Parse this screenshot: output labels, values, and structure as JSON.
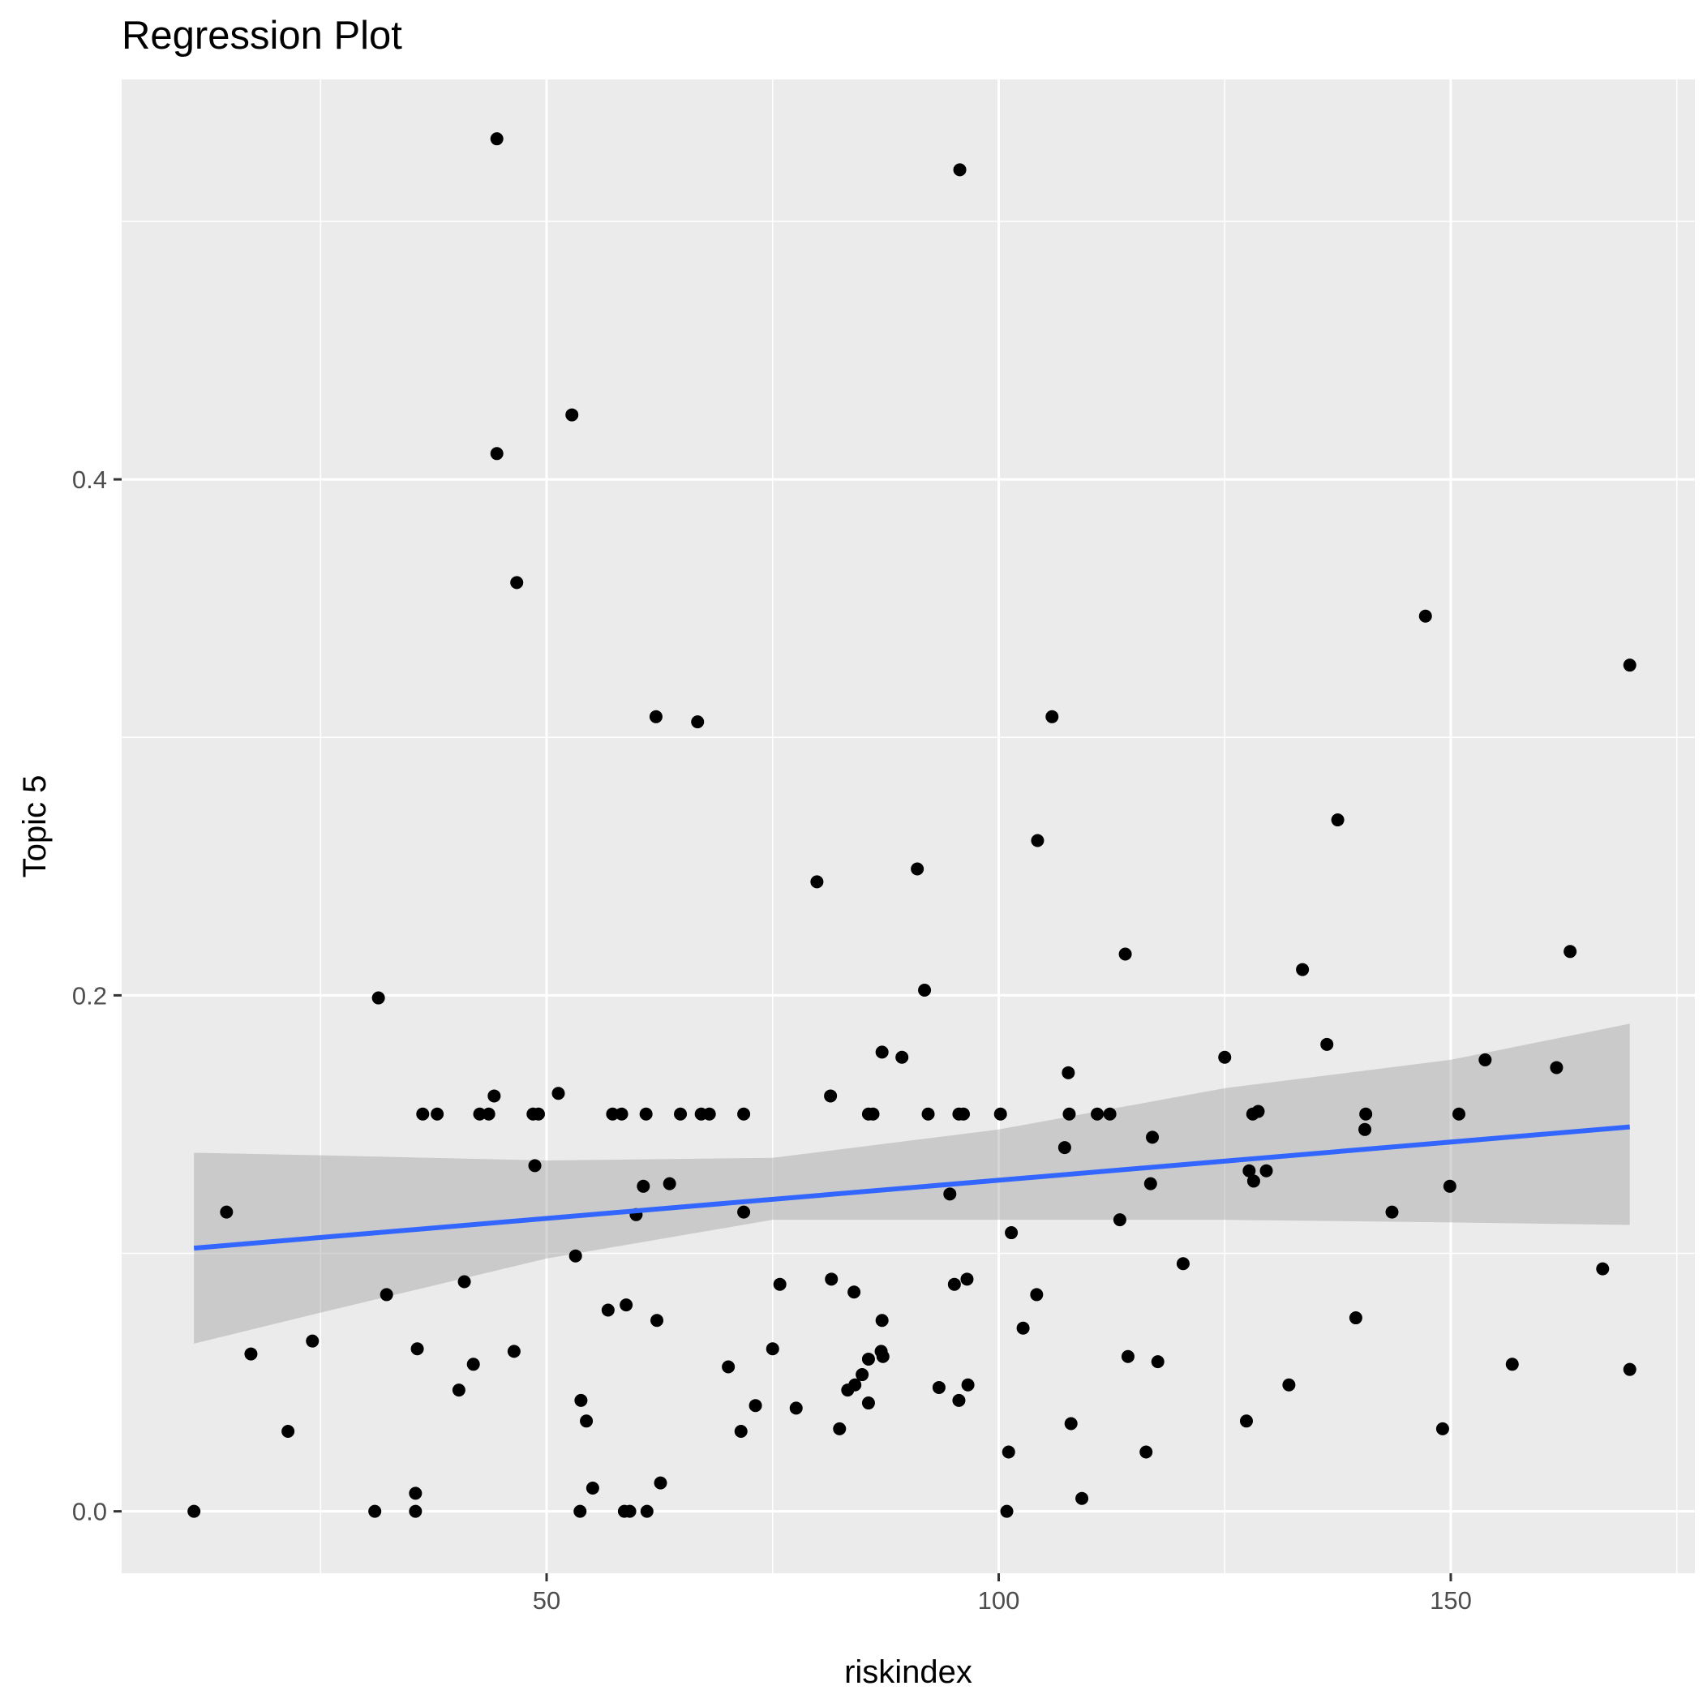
{
  "chart_data": {
    "type": "scatter",
    "title": "Regression Plot",
    "xlabel": "riskindex",
    "ylabel": "Topic 5",
    "xlim": [
      3,
      177
    ],
    "ylim": [
      -0.024,
      0.555
    ],
    "x_ticks": [
      50,
      100,
      150
    ],
    "x_tick_labels": [
      "50",
      "100",
      "150"
    ],
    "y_ticks": [
      0.0,
      0.2,
      0.4
    ],
    "y_tick_labels": [
      "0.0",
      "0.2",
      "0.4"
    ],
    "x_minor_ticks": [
      25,
      75,
      125,
      175
    ],
    "y_minor_ticks": [
      0.1,
      0.3,
      0.5
    ],
    "grid": true,
    "legend": "none",
    "colors": {
      "panel": "#ebebeb",
      "grid": "#ffffff",
      "points": "#000000",
      "regression_line": "#3366ff",
      "confidence_band": "#999999"
    },
    "points": [
      [
        11,
        0.0
      ],
      [
        14.6,
        0.116
      ],
      [
        17.3,
        0.061
      ],
      [
        21.4,
        0.031
      ],
      [
        24.1,
        0.066
      ],
      [
        31,
        0.0
      ],
      [
        31.4,
        0.199
      ],
      [
        32.3,
        0.084
      ],
      [
        35.5,
        0.0
      ],
      [
        35.5,
        0.007
      ],
      [
        35.7,
        0.063
      ],
      [
        36.3,
        0.154
      ],
      [
        37.9,
        0.154
      ],
      [
        40.3,
        0.047
      ],
      [
        40.9,
        0.089
      ],
      [
        41.9,
        0.057
      ],
      [
        42.6,
        0.154
      ],
      [
        43.6,
        0.154
      ],
      [
        44.2,
        0.161
      ],
      [
        44.5,
        0.532
      ],
      [
        44.5,
        0.41
      ],
      [
        46.4,
        0.062
      ],
      [
        46.7,
        0.36
      ],
      [
        48.5,
        0.154
      ],
      [
        48.7,
        0.134
      ],
      [
        49.1,
        0.154
      ],
      [
        51.3,
        0.162
      ],
      [
        52.8,
        0.425
      ],
      [
        53.2,
        0.099
      ],
      [
        53.7,
        0.0
      ],
      [
        53.8,
        0.043
      ],
      [
        54.4,
        0.035
      ],
      [
        55.1,
        0.009
      ],
      [
        56.8,
        0.078
      ],
      [
        57.3,
        0.154
      ],
      [
        58.3,
        0.154
      ],
      [
        58.6,
        0.0
      ],
      [
        58.8,
        0.08
      ],
      [
        59.2,
        0.0
      ],
      [
        59.9,
        0.115
      ],
      [
        60.7,
        0.126
      ],
      [
        61,
        0.154
      ],
      [
        61.1,
        0.0
      ],
      [
        62.1,
        0.308
      ],
      [
        62.2,
        0.074
      ],
      [
        62.6,
        0.011
      ],
      [
        63.6,
        0.127
      ],
      [
        64.8,
        0.154
      ],
      [
        66.7,
        0.306
      ],
      [
        67.1,
        0.154
      ],
      [
        68,
        0.154
      ],
      [
        70.1,
        0.056
      ],
      [
        71.5,
        0.031
      ],
      [
        71.8,
        0.154
      ],
      [
        71.8,
        0.116
      ],
      [
        73.1,
        0.041
      ],
      [
        75,
        0.063
      ],
      [
        75.8,
        0.088
      ],
      [
        77.6,
        0.04
      ],
      [
        79.9,
        0.244
      ],
      [
        81.4,
        0.161
      ],
      [
        81.5,
        0.09
      ],
      [
        82.4,
        0.032
      ],
      [
        83.3,
        0.047
      ],
      [
        84,
        0.085
      ],
      [
        84.1,
        0.049
      ],
      [
        84.9,
        0.053
      ],
      [
        85.6,
        0.059
      ],
      [
        85.6,
        0.154
      ],
      [
        85.6,
        0.042
      ],
      [
        86.1,
        0.154
      ],
      [
        87,
        0.062
      ],
      [
        87.1,
        0.074
      ],
      [
        87.1,
        0.178
      ],
      [
        87.2,
        0.06
      ],
      [
        89.3,
        0.176
      ],
      [
        91,
        0.249
      ],
      [
        91.8,
        0.202
      ],
      [
        92.2,
        0.154
      ],
      [
        93.4,
        0.048
      ],
      [
        94.6,
        0.123
      ],
      [
        95.1,
        0.088
      ],
      [
        95.6,
        0.154
      ],
      [
        95.6,
        0.043
      ],
      [
        95.7,
        0.52
      ],
      [
        96.1,
        0.154
      ],
      [
        96.5,
        0.09
      ],
      [
        96.6,
        0.049
      ],
      [
        100.2,
        0.154
      ],
      [
        100.9,
        0.0
      ],
      [
        101.1,
        0.023
      ],
      [
        101.4,
        0.108
      ],
      [
        102.7,
        0.071
      ],
      [
        104.2,
        0.084
      ],
      [
        104.3,
        0.26
      ],
      [
        105.9,
        0.308
      ],
      [
        107.3,
        0.141
      ],
      [
        107.7,
        0.17
      ],
      [
        107.8,
        0.154
      ],
      [
        108,
        0.034
      ],
      [
        109.2,
        0.005
      ],
      [
        110.9,
        0.154
      ],
      [
        112.3,
        0.154
      ],
      [
        113.4,
        0.113
      ],
      [
        114,
        0.216
      ],
      [
        114.3,
        0.06
      ],
      [
        116.3,
        0.023
      ],
      [
        116.8,
        0.127
      ],
      [
        117,
        0.145
      ],
      [
        117.6,
        0.058
      ],
      [
        120.4,
        0.096
      ],
      [
        125,
        0.176
      ],
      [
        127.4,
        0.035
      ],
      [
        127.7,
        0.132
      ],
      [
        128.1,
        0.154
      ],
      [
        128.2,
        0.128
      ],
      [
        128.7,
        0.155
      ],
      [
        129.6,
        0.132
      ],
      [
        132.1,
        0.049
      ],
      [
        133.6,
        0.21
      ],
      [
        136.3,
        0.181
      ],
      [
        137.5,
        0.268
      ],
      [
        139.5,
        0.075
      ],
      [
        140.5,
        0.148
      ],
      [
        140.6,
        0.154
      ],
      [
        143.5,
        0.116
      ],
      [
        147.2,
        0.347
      ],
      [
        149.1,
        0.032
      ],
      [
        149.9,
        0.126
      ],
      [
        150.9,
        0.154
      ],
      [
        153.8,
        0.175
      ],
      [
        156.8,
        0.057
      ],
      [
        161.7,
        0.172
      ],
      [
        163.2,
        0.217
      ],
      [
        166.8,
        0.094
      ],
      [
        169.8,
        0.055
      ],
      [
        169.8,
        0.328
      ]
    ],
    "regression_line": {
      "x": [
        11,
        169.8
      ],
      "y": [
        0.102,
        0.149
      ]
    },
    "confidence_band": {
      "x": [
        11,
        25,
        50,
        75,
        100,
        125,
        150,
        169.8
      ],
      "lower": [
        0.065,
        0.077,
        0.098,
        0.113,
        0.113,
        0.113,
        0.112,
        0.111
      ],
      "upper": [
        0.139,
        0.138,
        0.136,
        0.137,
        0.148,
        0.164,
        0.175,
        0.189
      ]
    }
  }
}
